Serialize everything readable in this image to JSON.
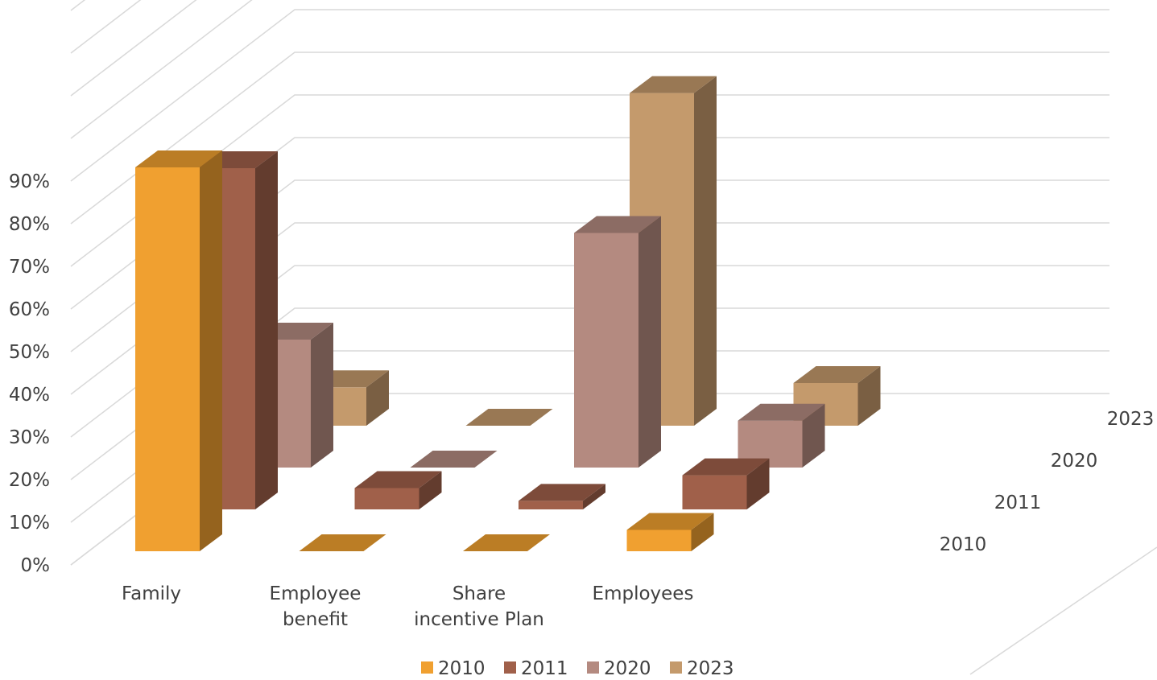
{
  "chart_data": {
    "type": "bar",
    "title": "",
    "ylabel": "",
    "xlabel": "",
    "ylim": [
      0,
      90
    ],
    "y_tick_labels": [
      "0%",
      "10%",
      "20%",
      "30%",
      "40%",
      "50%",
      "60%",
      "70%",
      "80%",
      "90%"
    ],
    "categories": [
      "Family",
      "Employee benefit",
      "Share incentive Plan",
      "Employees"
    ],
    "series": [
      {
        "name": "2010",
        "values": [
          90,
          0,
          0,
          5
        ],
        "color": "#F0A030"
      },
      {
        "name": "2011",
        "values": [
          80,
          5,
          2,
          8
        ],
        "color": "#A0604A"
      },
      {
        "name": "2020",
        "values": [
          30,
          0,
          55,
          11
        ],
        "color": "#B48A80"
      },
      {
        "name": "2023",
        "values": [
          9,
          0,
          78,
          10
        ],
        "color": "#C49A6C"
      }
    ],
    "depth_labels": [
      "2010",
      "2011",
      "2020",
      "2023"
    ],
    "legend_position": "bottom",
    "grid": true
  }
}
